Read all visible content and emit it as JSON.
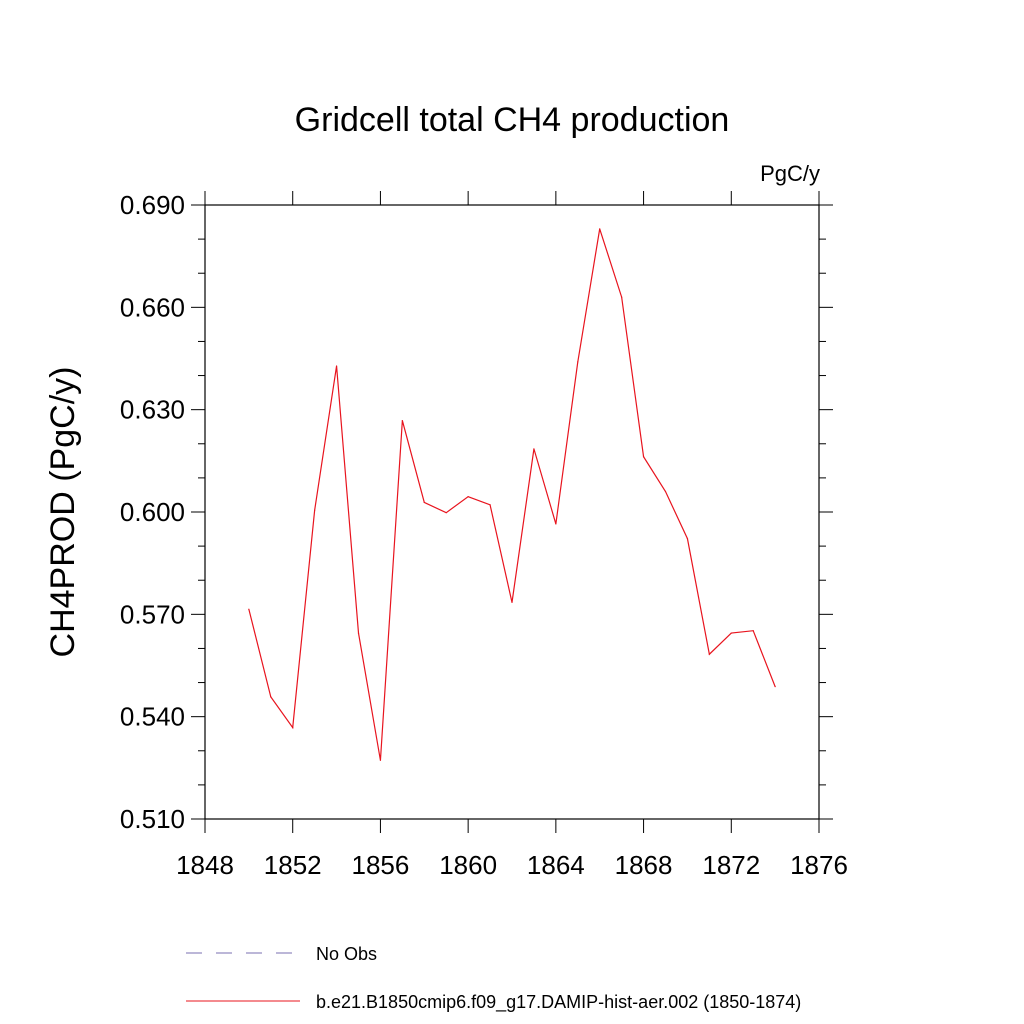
{
  "chart_data": {
    "type": "line",
    "title": "Gridcell total CH4 production",
    "units": "PgC/y",
    "ylabel": "CH4PROD  (PgC/y)",
    "xlabel": "",
    "xlim": [
      1848,
      1876
    ],
    "ylim": [
      0.51,
      0.69
    ],
    "xticks": [
      1848,
      1852,
      1856,
      1860,
      1864,
      1868,
      1872,
      1876
    ],
    "xtick_labels": [
      "1848",
      "1852",
      "1856",
      "1860",
      "1864",
      "1868",
      "1872",
      "1876"
    ],
    "yticks": [
      0.51,
      0.54,
      0.57,
      0.6,
      0.63,
      0.66,
      0.69
    ],
    "ytick_labels": [
      "0.510",
      "0.540",
      "0.570",
      "0.600",
      "0.630",
      "0.660",
      "0.690"
    ],
    "grid": false,
    "legend_position": "bottom",
    "series": [
      {
        "name": "No Obs",
        "color": "#7a6fb0",
        "style": "dashed",
        "x": [],
        "values": []
      },
      {
        "name": "b.e21.B1850cmip6.f09_g17.DAMIP-hist-aer.002 (1850-1874)",
        "color": "#e8141e",
        "style": "solid",
        "x": [
          1850,
          1851,
          1852,
          1853,
          1854,
          1855,
          1856,
          1857,
          1858,
          1859,
          1860,
          1861,
          1862,
          1863,
          1864,
          1865,
          1866,
          1867,
          1868,
          1869,
          1870,
          1871,
          1872,
          1873,
          1874
        ],
        "values": [
          0.5715,
          0.5458,
          0.5368,
          0.6005,
          0.6428,
          0.5645,
          0.5272,
          0.6268,
          0.6028,
          0.5998,
          0.6045,
          0.6021,
          0.5735,
          0.6185,
          0.5965,
          0.644,
          0.683,
          0.663,
          0.6162,
          0.606,
          0.5922,
          0.5583,
          0.5645,
          0.5652,
          0.5488
        ]
      }
    ]
  }
}
